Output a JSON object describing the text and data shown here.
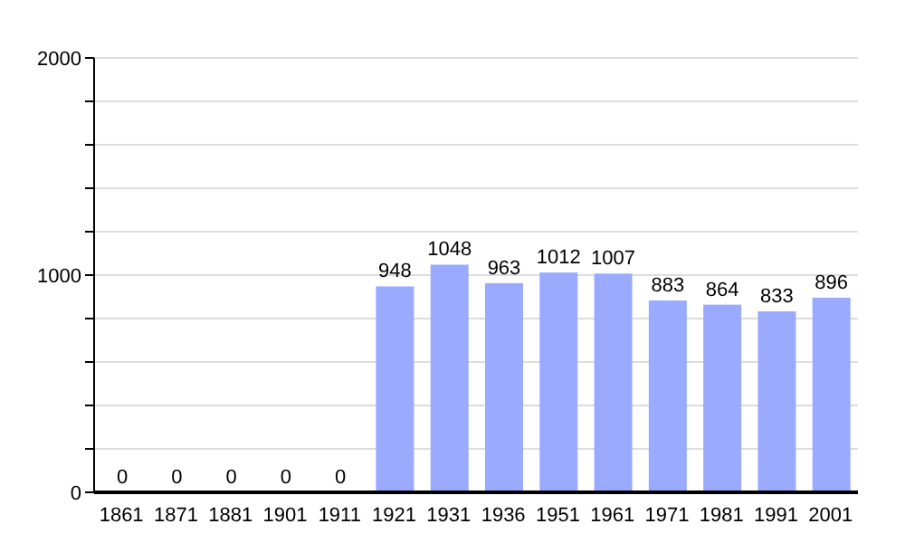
{
  "chart_data": {
    "type": "bar",
    "categories": [
      "1861",
      "1871",
      "1881",
      "1901",
      "1911",
      "1921",
      "1931",
      "1936",
      "1951",
      "1961",
      "1971",
      "1981",
      "1991",
      "2001"
    ],
    "values": [
      0,
      0,
      0,
      0,
      0,
      948,
      1048,
      963,
      1012,
      1007,
      883,
      864,
      833,
      896
    ],
    "color": "#99aaff",
    "ylim": [
      0,
      2000
    ],
    "yticks": [
      0,
      {
        "value": 200,
        "label": null
      },
      {
        "value": 400,
        "label": null
      },
      {
        "value": 600,
        "label": null
      },
      {
        "value": 800,
        "label": null
      },
      1000,
      {
        "value": 1200,
        "label": null
      },
      {
        "value": 1400,
        "label": null
      },
      {
        "value": 1600,
        "label": null
      },
      {
        "value": 1800,
        "label": null
      },
      2000
    ],
    "grid": "y",
    "data_labels": true
  }
}
